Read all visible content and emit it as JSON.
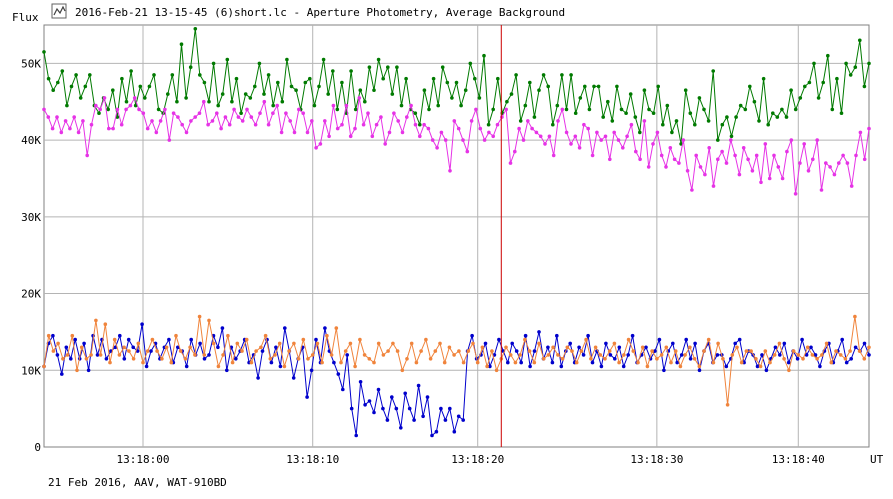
{
  "window": {
    "title": "2016-Feb-21 13-15-45 (6)short.lc - Aperture Photometry, Average Background",
    "icon": "lightcurve-icon"
  },
  "footer": {
    "caption": "21 Feb 2016, AAV, WAT-910BD"
  },
  "colors": {
    "grid": "#b4b4b4",
    "cursor": "#cc0000",
    "green": "#007a00",
    "magenta": "#e633e6",
    "blue": "#0000cc",
    "orange": "#f0843c"
  },
  "chart_data": {
    "type": "line",
    "ylabel": "Flux",
    "xlabel": "UT",
    "xlim": [
      0,
      175
    ],
    "ylim": [
      0,
      55000
    ],
    "y_ticks": [
      {
        "value": 0,
        "label": "0"
      },
      {
        "value": 10000,
        "label": "10K"
      },
      {
        "value": 20000,
        "label": "20K"
      },
      {
        "value": 30000,
        "label": "30K"
      },
      {
        "value": 40000,
        "label": "40K"
      },
      {
        "value": 50000,
        "label": "50K"
      }
    ],
    "x_ticks": [
      {
        "value": 21,
        "label": "13:18:00"
      },
      {
        "value": 57,
        "label": "13:18:10"
      },
      {
        "value": 92,
        "label": "13:18:20"
      },
      {
        "value": 130,
        "label": "13:18:30"
      },
      {
        "value": 160,
        "label": "13:18:40"
      }
    ],
    "cursor_x": 97,
    "grid": true,
    "series": [
      {
        "color": "#007a00",
        "values": [
          51500,
          48000,
          46500,
          47500,
          49000,
          44500,
          47000,
          48500,
          45500,
          47000,
          48500,
          44500,
          43500,
          45500,
          44000,
          46500,
          43000,
          48000,
          45000,
          49000,
          44500,
          47000,
          45500,
          47000,
          48500,
          44000,
          43500,
          46000,
          48500,
          45000,
          52500,
          45500,
          49500,
          54500,
          48500,
          47500,
          45000,
          50000,
          44500,
          46000,
          50500,
          45000,
          48000,
          43500,
          46000,
          45500,
          47000,
          50000,
          46000,
          48500,
          44500,
          47500,
          45000,
          50500,
          47000,
          46500,
          44000,
          47500,
          48000,
          44500,
          47000,
          50500,
          46000,
          49000,
          44000,
          47500,
          43500,
          49000,
          44000,
          46500,
          45000,
          49500,
          46500,
          50500,
          48000,
          49500,
          46000,
          49500,
          44500,
          48000,
          44000,
          43500,
          42000,
          46500,
          44000,
          48000,
          44500,
          49500,
          47500,
          45500,
          47500,
          44500,
          46500,
          50000,
          48000,
          45500,
          51000,
          42000,
          44000,
          48000,
          43500,
          45000,
          46000,
          48500,
          42500,
          44500,
          47500,
          43000,
          46500,
          48500,
          47000,
          42000,
          44500,
          48500,
          44000,
          48500,
          43500,
          45500,
          47000,
          44000,
          47000,
          47000,
          43000,
          45000,
          42500,
          47000,
          44000,
          43500,
          46000,
          43000,
          41000,
          46500,
          44000,
          43500,
          47000,
          42000,
          44500,
          41000,
          42500,
          39500,
          46500,
          43500,
          42000,
          45500,
          44000,
          42500,
          49000,
          40000,
          42000,
          43000,
          40500,
          43000,
          44500,
          44000,
          47000,
          45000,
          42500,
          48000,
          42000,
          43500,
          43000,
          44000,
          43000,
          46500,
          44000,
          45500,
          47000,
          47500,
          50000,
          45500,
          47500,
          51000,
          44000,
          48000,
          43500,
          50000,
          48500,
          49500,
          53000,
          47000,
          50000
        ],
        "markers": true
      },
      {
        "color": "#e633e6",
        "values": [
          44000,
          43000,
          41500,
          43000,
          41000,
          42500,
          41500,
          43000,
          41000,
          42500,
          38000,
          42000,
          44500,
          44000,
          45500,
          41500,
          41500,
          44000,
          42000,
          44000,
          44500,
          45500,
          44000,
          43500,
          41500,
          42500,
          41000,
          42500,
          44000,
          40000,
          43500,
          43000,
          42000,
          41000,
          42500,
          43000,
          43500,
          45000,
          42000,
          42500,
          43500,
          41500,
          43000,
          42000,
          44000,
          43000,
          42500,
          44000,
          43000,
          42000,
          43500,
          45000,
          42000,
          43500,
          44500,
          41000,
          43500,
          42500,
          41000,
          44000,
          43500,
          41000,
          42500,
          39000,
          39500,
          42500,
          40500,
          44500,
          41500,
          42000,
          44500,
          40500,
          41500,
          45500,
          42000,
          43500,
          40500,
          42000,
          43000,
          39500,
          41000,
          43500,
          42500,
          41000,
          43000,
          44500,
          42000,
          40500,
          42000,
          41500,
          40000,
          39000,
          41000,
          40000,
          36000,
          42500,
          41500,
          40000,
          38500,
          42500,
          44000,
          41500,
          40000,
          41000,
          40500,
          42000,
          43000,
          44000,
          37000,
          38500,
          41500,
          40000,
          42500,
          41500,
          41000,
          40500,
          39500,
          40500,
          38000,
          42500,
          44000,
          41000,
          39500,
          40500,
          39000,
          42000,
          41500,
          38000,
          41000,
          40000,
          40500,
          37500,
          41000,
          40000,
          39000,
          40500,
          42000,
          38500,
          37500,
          42500,
          36500,
          39500,
          41000,
          38000,
          36500,
          39000,
          37500,
          37000,
          40000,
          36000,
          33500,
          38000,
          36500,
          35500,
          39000,
          34000,
          37500,
          38500,
          37000,
          40000,
          38000,
          35500,
          39000,
          37500,
          36000,
          38000,
          34500,
          39500,
          35000,
          38000,
          36500,
          35000,
          38500,
          40000,
          33000,
          37000,
          39500,
          36000,
          37500,
          40000,
          33500,
          37000,
          36500,
          35500,
          37000,
          38000,
          37000,
          34000,
          38000,
          41000,
          37500,
          41500
        ],
        "markers": true
      },
      {
        "color": "#0000cc",
        "values": [
          10500,
          13500,
          14500,
          12000,
          9500,
          13000,
          11500,
          14000,
          11500,
          13500,
          10000,
          14500,
          12000,
          14000,
          11500,
          12500,
          13000,
          14500,
          11500,
          14000,
          13000,
          12500,
          16000,
          10500,
          12500,
          13500,
          11500,
          13000,
          14000,
          11000,
          13000,
          12500,
          10500,
          14000,
          12000,
          13500,
          11500,
          12000,
          14500,
          13000,
          15500,
          10000,
          13000,
          11500,
          12500,
          14000,
          11000,
          12000,
          9000,
          12500,
          14000,
          11000,
          13000,
          10500,
          15500,
          12500,
          9000,
          11500,
          13000,
          6500,
          10000,
          14000,
          11000,
          15500,
          12500,
          11000,
          9500,
          7500,
          12000,
          5000,
          1500,
          8500,
          5500,
          6000,
          4500,
          7500,
          5000,
          3500,
          6500,
          5000,
          2500,
          7000,
          5000,
          3500,
          8000,
          4000,
          6500,
          1500,
          2000,
          5000,
          3500,
          5000,
          2000,
          4000,
          3500,
          12500,
          14500,
          11500,
          12000,
          13500,
          10500,
          12000,
          14000,
          12500,
          11000,
          13500,
          12500,
          11000,
          14500,
          10500,
          12500,
          15000,
          11500,
          13000,
          11000,
          14500,
          10500,
          12500,
          13500,
          11000,
          13000,
          12000,
          14500,
          11000,
          12500,
          10500,
          13500,
          12000,
          11500,
          13000,
          10500,
          12000,
          14500,
          11000,
          12000,
          13000,
          11500,
          12500,
          14000,
          10000,
          12500,
          13500,
          11000,
          12000,
          14000,
          11500,
          13500,
          10000,
          12500,
          13500,
          11000,
          12000,
          12000,
          10500,
          11500,
          13500,
          14000,
          11000,
          12500,
          12000,
          10500,
          12000,
          10000,
          11500,
          13000,
          12000,
          13500,
          11000,
          12500,
          11500,
          14000,
          12000,
          13000,
          12000,
          10500,
          12500,
          13500,
          11000,
          12500,
          14000,
          11000,
          11500,
          13000,
          12500,
          13500,
          12000
        ],
        "markers": true
      },
      {
        "color": "#f0843c",
        "values": [
          10500,
          14500,
          12500,
          13500,
          11500,
          12000,
          14500,
          10000,
          13000,
          11500,
          12000,
          16500,
          12000,
          16000,
          11000,
          14000,
          12000,
          13000,
          12500,
          11500,
          13500,
          11000,
          12500,
          14000,
          12500,
          11500,
          13000,
          11000,
          14500,
          12500,
          11500,
          13000,
          12000,
          17000,
          12000,
          16500,
          13500,
          10500,
          12000,
          14500,
          11000,
          13500,
          12500,
          14000,
          11000,
          12500,
          13000,
          14500,
          11500,
          12000,
          13500,
          10500,
          12500,
          13500,
          11500,
          14000,
          11500,
          12000,
          13500,
          11000,
          14500,
          12000,
          15500,
          11000,
          12500,
          13500,
          10500,
          14000,
          12000,
          11500,
          11000,
          13500,
          12000,
          12500,
          13500,
          12500,
          10000,
          11500,
          13500,
          11000,
          12500,
          14000,
          11500,
          12500,
          13500,
          11000,
          13000,
          12000,
          12500,
          11000,
          12500,
          13500,
          11000,
          13000,
          10500,
          12500,
          10000,
          11500,
          13000,
          12000,
          11000,
          12000,
          14000,
          12500,
          11000,
          13500,
          11500,
          12000,
          13000,
          12000,
          11500,
          13000,
          12500,
          11000,
          12500,
          14000,
          11500,
          13000,
          12000,
          11500,
          12500,
          13500,
          11000,
          12000,
          14000,
          12500,
          11000,
          13000,
          10500,
          12500,
          11500,
          12000,
          13000,
          11000,
          12500,
          10500,
          12000,
          13000,
          11500,
          10500,
          12500,
          14000,
          11000,
          13500,
          11500,
          5500,
          12000,
          13000,
          11000,
          12500,
          12500,
          11500,
          10500,
          12500,
          11000,
          12000,
          13500,
          11500,
          10000,
          12500,
          12000,
          11500,
          13000,
          12000,
          11500,
          12000,
          13500,
          11000,
          12500,
          12000,
          11500,
          12500,
          17000,
          12500,
          11500,
          13000
        ]
      }
    ]
  }
}
